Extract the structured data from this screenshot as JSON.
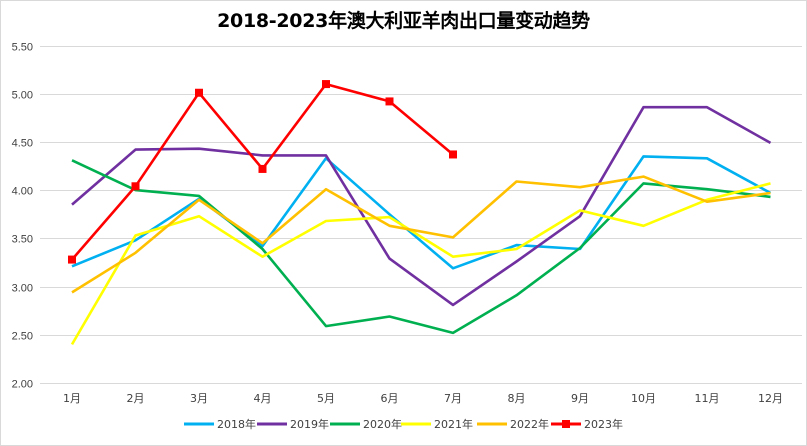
{
  "chart_data": {
    "type": "line",
    "title": "2018-2023年澳大利亚羊肉出口量变动趋势",
    "xlabel": "",
    "ylabel": "",
    "categories": [
      "1月",
      "2月",
      "3月",
      "4月",
      "5月",
      "6月",
      "7月",
      "8月",
      "9月",
      "10月",
      "11月",
      "12月"
    ],
    "ylim": [
      2.0,
      5.5
    ],
    "yticks": [
      "2.00",
      "2.50",
      "3.00",
      "3.50",
      "4.00",
      "4.50",
      "5.00",
      "5.50"
    ],
    "ytick_values": [
      2.0,
      2.5,
      3.0,
      3.5,
      4.0,
      4.5,
      5.0,
      5.5
    ],
    "grid": true,
    "legend_position": "bottom",
    "series": [
      {
        "name": "2018年",
        "color": "#00b0f0",
        "marker": "none",
        "values": [
          3.21,
          3.48,
          3.91,
          3.42,
          4.33,
          3.75,
          3.19,
          3.43,
          3.39,
          4.35,
          4.33,
          3.97
        ]
      },
      {
        "name": "2019年",
        "color": "#7030a0",
        "marker": "none",
        "values": [
          3.85,
          4.42,
          4.43,
          4.36,
          4.36,
          3.29,
          2.81,
          3.26,
          3.73,
          4.86,
          4.86,
          4.49
        ]
      },
      {
        "name": "2020年",
        "color": "#00b050",
        "marker": "none",
        "values": [
          4.31,
          4.0,
          3.94,
          3.39,
          2.59,
          2.69,
          2.52,
          2.91,
          3.4,
          4.07,
          4.01,
          3.93
        ]
      },
      {
        "name": "2021年",
        "color": "#ffff00",
        "marker": "none",
        "values": [
          2.4,
          3.53,
          3.73,
          3.31,
          3.68,
          3.72,
          3.31,
          3.39,
          3.79,
          3.63,
          3.9,
          4.07
        ]
      },
      {
        "name": "2022年",
        "color": "#ffc000",
        "marker": "none",
        "values": [
          2.94,
          3.35,
          3.9,
          3.45,
          4.01,
          3.63,
          3.51,
          4.09,
          4.03,
          4.14,
          3.88,
          3.97
        ]
      },
      {
        "name": "2023年",
        "color": "#ff0000",
        "marker": "square",
        "values": [
          3.28,
          4.04,
          5.01,
          4.22,
          5.1,
          4.92,
          4.37,
          null,
          null,
          null,
          null,
          null
        ]
      }
    ]
  }
}
